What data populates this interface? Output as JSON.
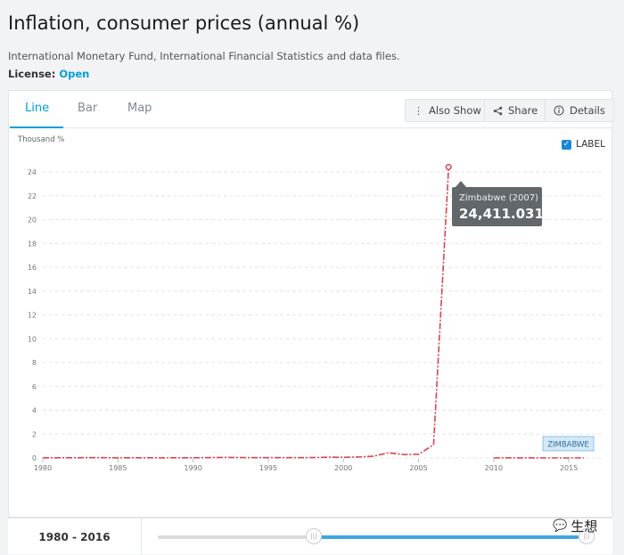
{
  "page": {
    "title": "Inflation, consumer prices (annual %)",
    "source": "International Monetary Fund, International Financial Statistics and data files.",
    "license_label": "License:",
    "license_value": "Open"
  },
  "tabs": [
    {
      "label": "Line",
      "active": true
    },
    {
      "label": "Bar",
      "active": false
    },
    {
      "label": "Map",
      "active": false
    }
  ],
  "toolbar": {
    "also_show": "Also Show",
    "share": "Share",
    "details": "Details"
  },
  "label_toggle": {
    "label": "LABEL",
    "checked": true
  },
  "range": {
    "label": "1980 - 2016",
    "start": 1980,
    "end": 2016,
    "min": 1960,
    "max": 2016
  },
  "watermark": "生想",
  "colors": {
    "accent": "#009fda",
    "series": "#d9434f",
    "tooltip_bg": "#62676b"
  },
  "chart_data": {
    "type": "line",
    "ylabel": "Thousand %",
    "xlim": [
      1980,
      2016
    ],
    "ylim": [
      0,
      24
    ],
    "x_ticks": [
      1980,
      1985,
      1990,
      1995,
      2000,
      2005,
      2010,
      2015
    ],
    "y_ticks": [
      0,
      2,
      4,
      6,
      8,
      10,
      12,
      14,
      16,
      18,
      20,
      22,
      24
    ],
    "grid": true,
    "series": [
      {
        "name": "ZIMBABWE",
        "color": "#d9434f",
        "x": [
          1980,
          1981,
          1982,
          1983,
          1984,
          1985,
          1986,
          1987,
          1988,
          1989,
          1990,
          1991,
          1992,
          1993,
          1994,
          1995,
          1996,
          1997,
          1998,
          1999,
          2000,
          2001,
          2002,
          2003,
          2004,
          2005,
          2006,
          2007,
          2008,
          2009,
          2010,
          2011,
          2012,
          2013,
          2014,
          2015,
          2016
        ],
        "values": [
          0.005,
          0.014,
          0.015,
          0.019,
          0.02,
          0.008,
          0.014,
          0.012,
          0.007,
          0.013,
          0.017,
          0.023,
          0.042,
          0.028,
          0.022,
          0.023,
          0.021,
          0.019,
          0.032,
          0.058,
          0.055,
          0.074,
          0.14,
          0.43,
          0.28,
          0.3,
          1.1,
          24.411031,
          null,
          null,
          0.003,
          0.004,
          0.004,
          0.002,
          0.0,
          -0.002,
          -0.002
        ]
      }
    ],
    "tooltip": {
      "title": "Zimbabwe (2007)",
      "value": "24,411.031"
    }
  }
}
